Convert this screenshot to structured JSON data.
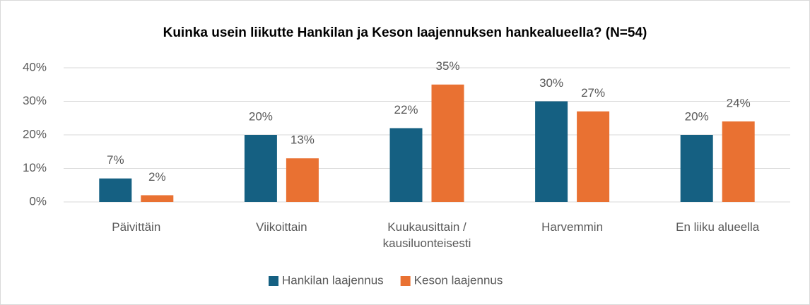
{
  "chart_data": {
    "type": "bar",
    "title": "Kuinka usein liikutte Hankilan ja Keson laajennuksen hankealueella? (N=54)",
    "categories": [
      "Päivittäin",
      "Viikoittain",
      "Kuukausittain / kausiluonteisesti",
      "Harvemmin",
      "En liiku alueella"
    ],
    "series": [
      {
        "name": "Hankilan laajennus",
        "color": "#156082",
        "values": [
          7,
          20,
          22,
          30,
          20
        ]
      },
      {
        "name": "Keson laajennus",
        "color": "#e97132",
        "values": [
          2,
          13,
          35,
          27,
          24
        ]
      }
    ],
    "ylim": [
      0,
      40
    ],
    "yticks": [
      {
        "value": 0,
        "label": "0%"
      },
      {
        "value": 10,
        "label": "10%"
      },
      {
        "value": 20,
        "label": "20%"
      },
      {
        "value": 30,
        "label": "30%"
      },
      {
        "value": 40,
        "label": "40%"
      }
    ],
    "value_labels": [
      [
        "7%",
        "20%",
        "22%",
        "30%",
        "20%"
      ],
      [
        "2%",
        "13%",
        "35%",
        "27%",
        "24%"
      ]
    ],
    "grid": true,
    "legend": "bottom"
  }
}
